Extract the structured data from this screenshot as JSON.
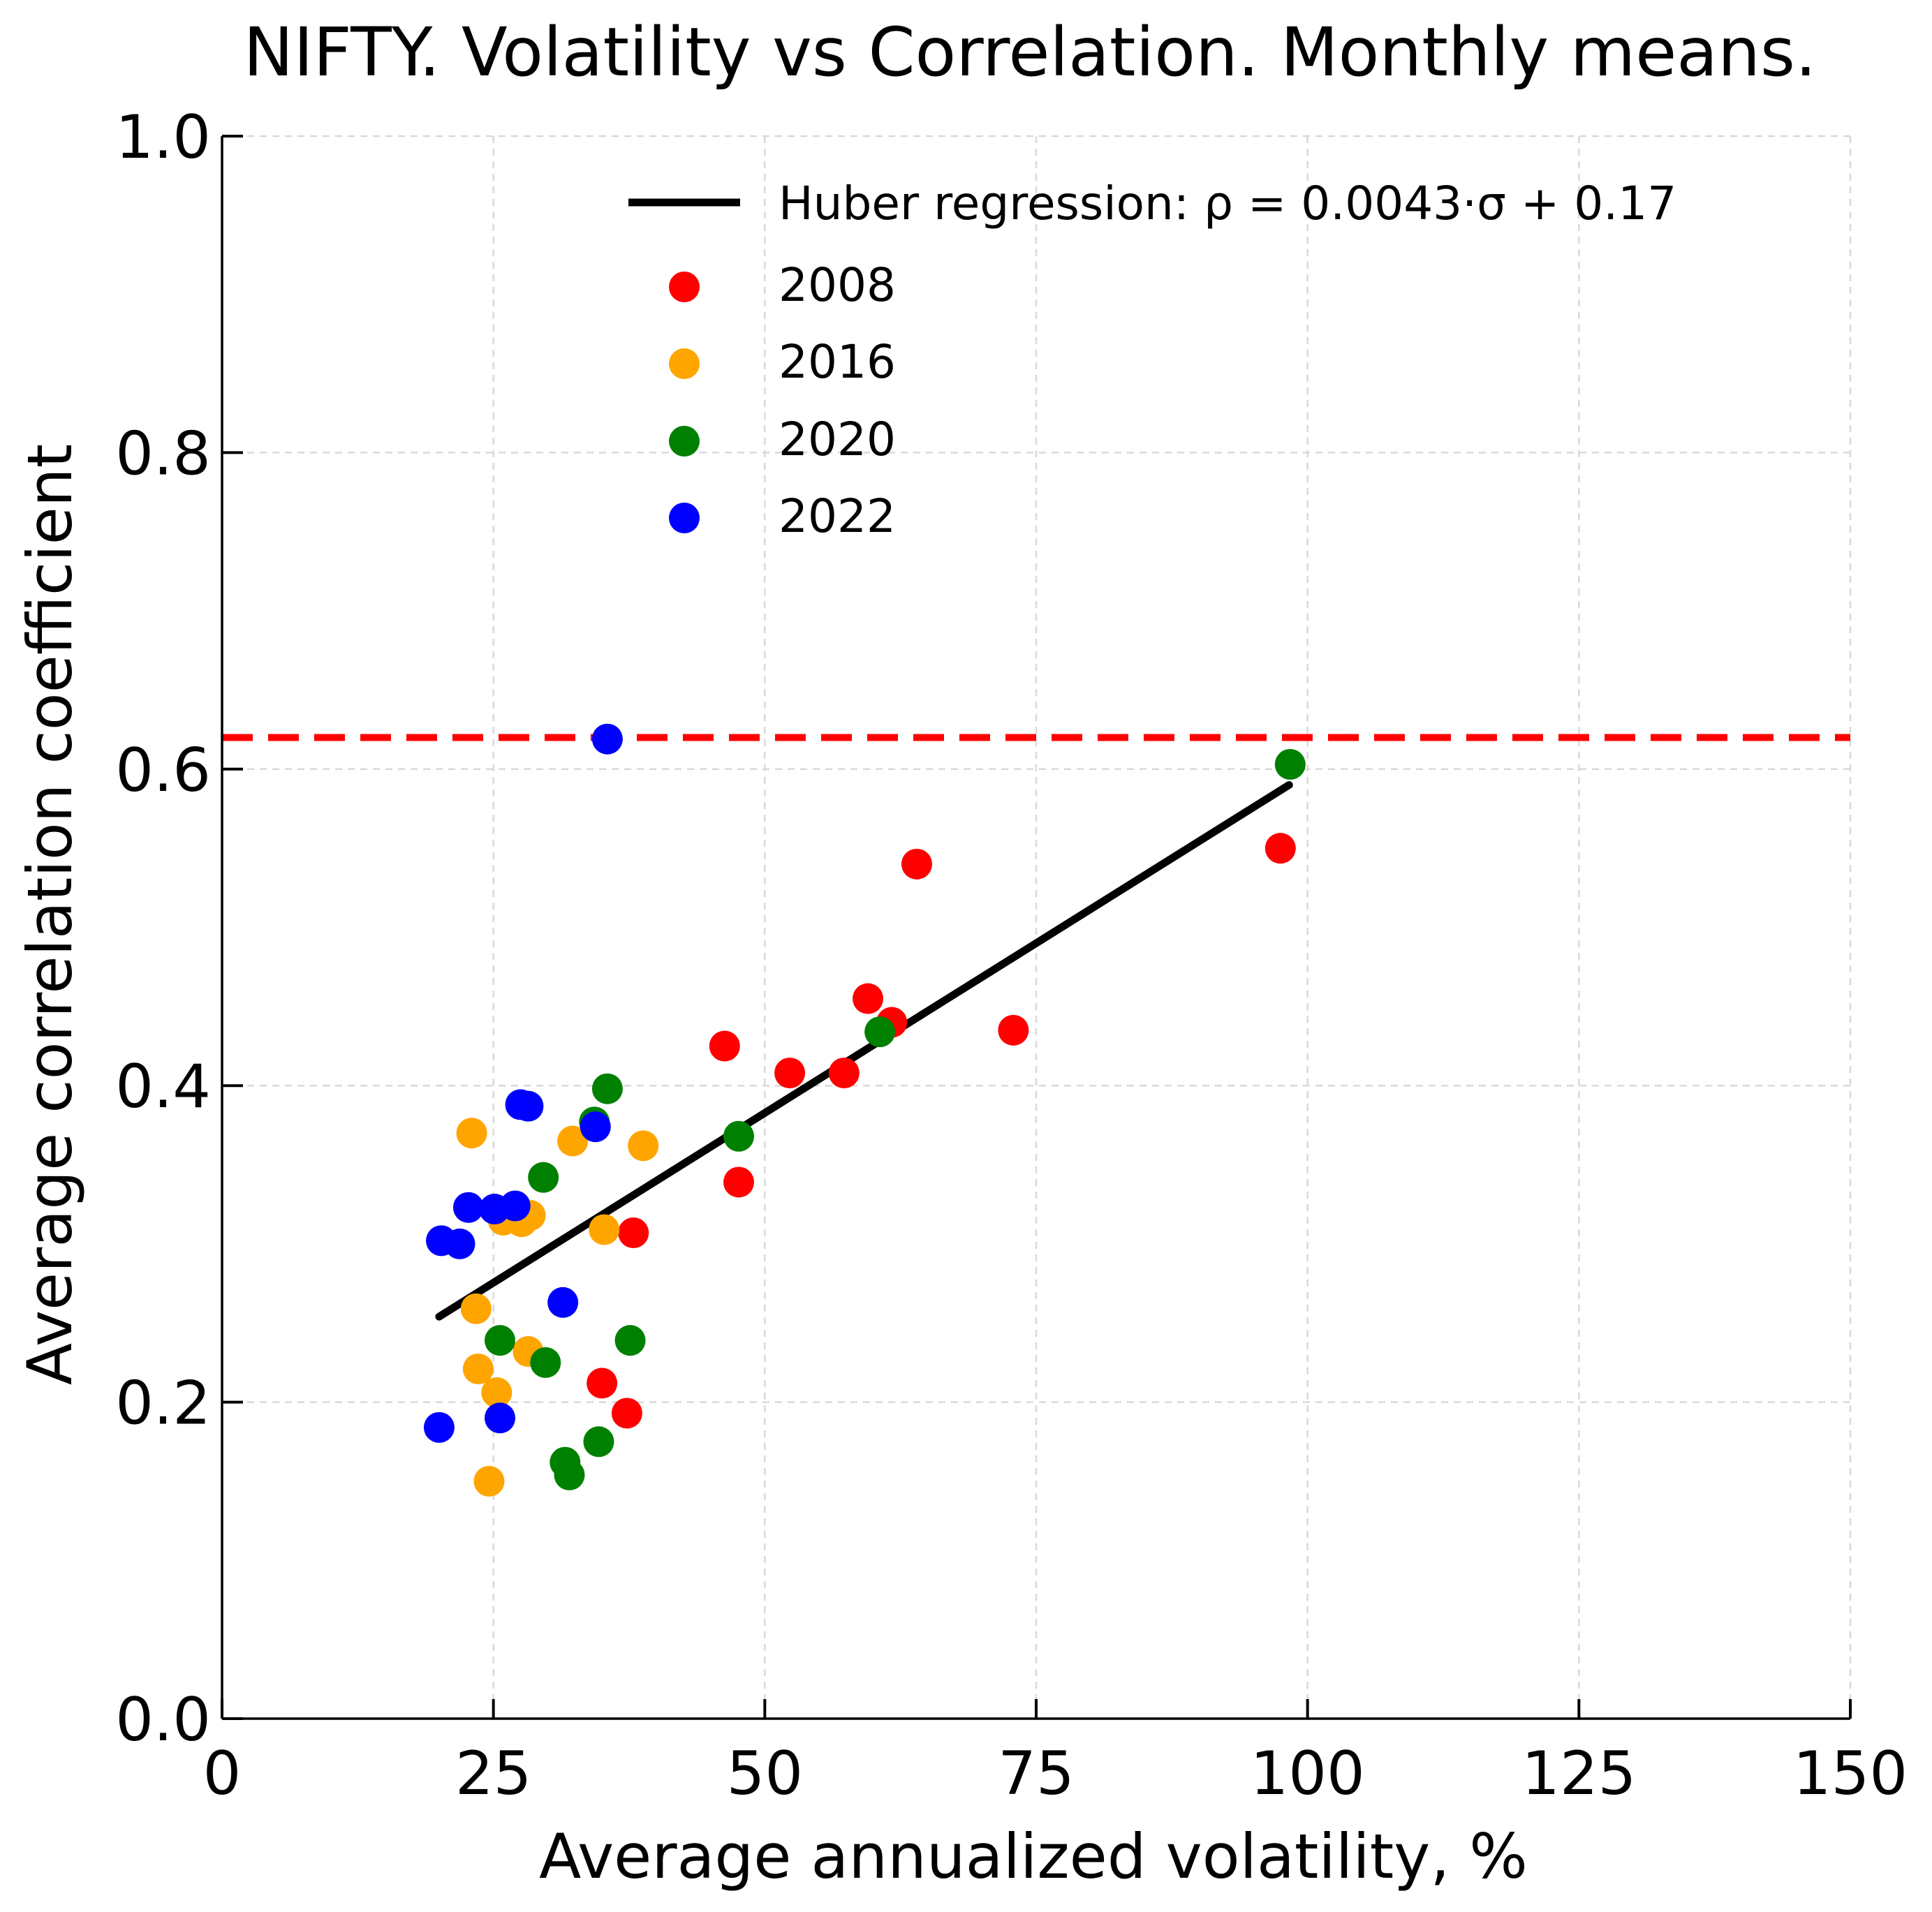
{
  "chart_data": {
    "type": "scatter",
    "title": "NIFTY. Volatility vs Correlation. Monthly means.",
    "xlabel": "Average annualized volatility, %",
    "ylabel": "Average correlation coefficient",
    "xlim": [
      0,
      150
    ],
    "ylim": [
      0,
      1.0
    ],
    "xticks": [
      "0",
      "25",
      "50",
      "75",
      "100",
      "125",
      "150"
    ],
    "yticks": [
      "0.0",
      "0.2",
      "0.4",
      "0.6",
      "0.8",
      "1.0"
    ],
    "grid": true,
    "legend_position": "top-right",
    "colors": {
      "2008": "#ff0000",
      "2016": "#ffa500",
      "2020": "#008000",
      "2022": "#0000ff",
      "fit": "#000000",
      "threshold": "#ff0000"
    },
    "regression": {
      "label": "Huber regression: ρ = 0.0043·σ + 0.17",
      "x": [
        20,
        98.3
      ],
      "y": [
        0.254,
        0.59
      ]
    },
    "threshold_line": {
      "y": 0.62
    },
    "series": [
      {
        "name": "2008",
        "points": [
          [
            35.0,
            0.212
          ],
          [
            37.3,
            0.193
          ],
          [
            37.9,
            0.307
          ],
          [
            46.3,
            0.425
          ],
          [
            47.6,
            0.339
          ],
          [
            52.3,
            0.408
          ],
          [
            57.3,
            0.408
          ],
          [
            59.5,
            0.455
          ],
          [
            61.7,
            0.44
          ],
          [
            64.0,
            0.54
          ],
          [
            72.9,
            0.435
          ],
          [
            97.5,
            0.55
          ]
        ]
      },
      {
        "name": "2016",
        "points": [
          [
            23.0,
            0.37
          ],
          [
            23.4,
            0.259
          ],
          [
            23.6,
            0.221
          ],
          [
            24.6,
            0.15
          ],
          [
            25.3,
            0.206
          ],
          [
            25.9,
            0.315
          ],
          [
            27.6,
            0.314
          ],
          [
            28.4,
            0.318
          ],
          [
            28.2,
            0.232
          ],
          [
            32.3,
            0.365
          ],
          [
            35.2,
            0.309
          ],
          [
            38.8,
            0.362
          ]
        ]
      },
      {
        "name": "2020",
        "points": [
          [
            25.6,
            0.239
          ],
          [
            29.6,
            0.342
          ],
          [
            29.8,
            0.225
          ],
          [
            31.6,
            0.162
          ],
          [
            32.0,
            0.154
          ],
          [
            34.3,
            0.377
          ],
          [
            34.7,
            0.175
          ],
          [
            35.5,
            0.398
          ],
          [
            37.6,
            0.239
          ],
          [
            47.6,
            0.368
          ],
          [
            60.6,
            0.434
          ],
          [
            98.4,
            0.603
          ]
        ]
      },
      {
        "name": "2022",
        "points": [
          [
            20.0,
            0.184
          ],
          [
            20.2,
            0.302
          ],
          [
            21.9,
            0.3
          ],
          [
            22.7,
            0.323
          ],
          [
            25.1,
            0.322
          ],
          [
            25.6,
            0.19
          ],
          [
            27.0,
            0.324
          ],
          [
            27.5,
            0.388
          ],
          [
            28.2,
            0.387
          ],
          [
            31.4,
            0.263
          ],
          [
            34.4,
            0.374
          ],
          [
            35.5,
            0.619
          ]
        ]
      }
    ]
  }
}
